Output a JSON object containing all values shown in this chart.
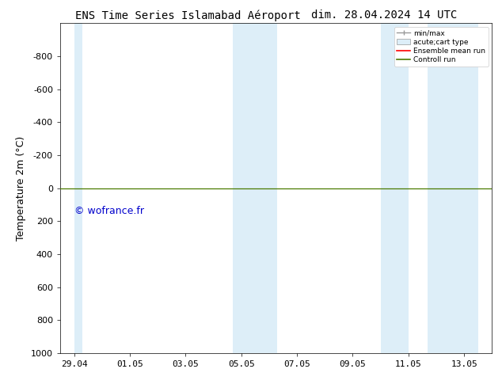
{
  "title_left": "ENS Time Series Islamabad Aéroport",
  "title_right": "dim. 28.04.2024 14 UTC",
  "ylabel": "Temperature 2m (°C)",
  "watermark": "© wofrance.fr",
  "xtick_labels": [
    "29.04",
    "01.05",
    "03.05",
    "05.05",
    "07.05",
    "09.05",
    "11.05",
    "13.05"
  ],
  "xtick_positions": [
    0,
    2,
    4,
    6,
    8,
    10,
    12,
    14
  ],
  "ylim": [
    -1000,
    1000
  ],
  "ytick_positions": [
    -800,
    -600,
    -400,
    -200,
    0,
    200,
    400,
    600,
    800,
    1000
  ],
  "ytick_labels": [
    "-800",
    "-600",
    "-400",
    "-200",
    "0",
    "200",
    "400",
    "600",
    "800",
    "1000"
  ],
  "shaded_bands": [
    [
      0.0,
      0.3
    ],
    [
      5.7,
      7.3
    ],
    [
      11.0,
      12.0
    ],
    [
      12.7,
      14.5
    ]
  ],
  "shaded_color": "#ddeef8",
  "control_run_color": "#4a7a00",
  "ensemble_mean_color": "#ff0000",
  "background_color": "#ffffff",
  "legend_entries": [
    "min/max",
    "acute;cart type",
    "Ensemble mean run",
    "Controll run"
  ],
  "title_fontsize": 10,
  "tick_fontsize": 8,
  "ylabel_fontsize": 9,
  "watermark_color": "#0000cc",
  "watermark_fontsize": 9
}
